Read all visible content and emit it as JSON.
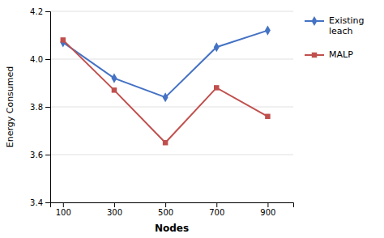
{
  "chart_data": {
    "type": "line",
    "xlabel": "Nodes",
    "ylabel": "Energy Consumed",
    "x": [
      100,
      300,
      500,
      700,
      900
    ],
    "series": [
      {
        "name": "Existing\nleach",
        "color": "#4472C4",
        "marker": "diamond",
        "values": [
          4.07,
          3.92,
          3.84,
          4.05,
          4.12
        ]
      },
      {
        "name": "MALP",
        "color": "#C0504D",
        "marker": "square",
        "values": [
          4.08,
          3.87,
          3.65,
          3.88,
          3.76
        ]
      }
    ],
    "xlim": [
      50,
      1000
    ],
    "xticks": [
      100,
      300,
      500,
      700,
      900
    ],
    "ylim": [
      3.4,
      4.2
    ],
    "yticks": [
      3.4,
      3.6,
      3.8,
      {
        "value": 4.0,
        "label": "4.0"
      },
      4.2
    ],
    "grid": true,
    "legend": "right"
  }
}
